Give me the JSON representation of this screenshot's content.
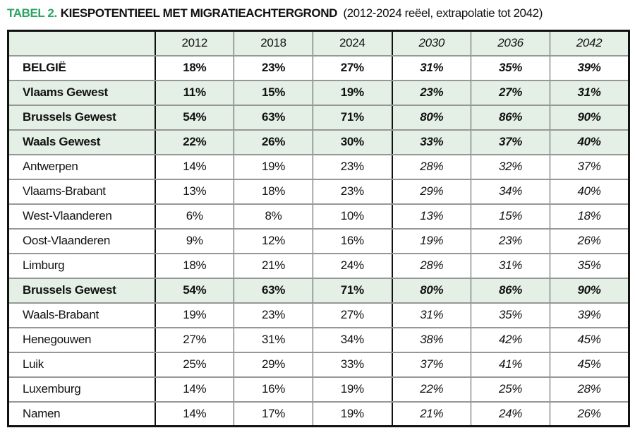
{
  "title": {
    "label": "TABEL 2.",
    "heading": "KIESPOTENTIEEL MET MIGRATIEACHTERGROND",
    "subtitle": "(2012-2024 reëel, extrapolatie tot 2042)"
  },
  "colors": {
    "accent_green": "#2BA563",
    "row_green": "#e4f0e6",
    "border_dark": "#111111",
    "border_gray": "#979797"
  },
  "table": {
    "columns": [
      "",
      "2012",
      "2018",
      "2024",
      "2030",
      "2036",
      "2042"
    ],
    "real_columns": [
      "2012",
      "2018",
      "2024"
    ],
    "extrapolated_columns": [
      "2030",
      "2036",
      "2042"
    ],
    "rows": [
      {
        "label": "BELGIË",
        "values": [
          "18%",
          "23%",
          "27%",
          "31%",
          "35%",
          "39%"
        ],
        "emphasis": "bold",
        "highlight": false
      },
      {
        "label": "Vlaams Gewest",
        "values": [
          "11%",
          "15%",
          "19%",
          "23%",
          "27%",
          "31%"
        ],
        "emphasis": "bold",
        "highlight": true
      },
      {
        "label": "Brussels Gewest",
        "values": [
          "54%",
          "63%",
          "71%",
          "80%",
          "86%",
          "90%"
        ],
        "emphasis": "bold",
        "highlight": true
      },
      {
        "label": "Waals Gewest",
        "values": [
          "22%",
          "26%",
          "30%",
          "33%",
          "37%",
          "40%"
        ],
        "emphasis": "bold",
        "highlight": true
      },
      {
        "label": "Antwerpen",
        "values": [
          "14%",
          "19%",
          "23%",
          "28%",
          "32%",
          "37%"
        ],
        "emphasis": "normal",
        "highlight": false
      },
      {
        "label": "Vlaams-Brabant",
        "values": [
          "13%",
          "18%",
          "23%",
          "29%",
          "34%",
          "40%"
        ],
        "emphasis": "normal",
        "highlight": false
      },
      {
        "label": "West-Vlaanderen",
        "values": [
          "6%",
          "8%",
          "10%",
          "13%",
          "15%",
          "18%"
        ],
        "emphasis": "normal",
        "highlight": false
      },
      {
        "label": "Oost-Vlaanderen",
        "values": [
          "9%",
          "12%",
          "16%",
          "19%",
          "23%",
          "26%"
        ],
        "emphasis": "normal",
        "highlight": false
      },
      {
        "label": "Limburg",
        "values": [
          "18%",
          "21%",
          "24%",
          "28%",
          "31%",
          "35%"
        ],
        "emphasis": "normal",
        "highlight": false
      },
      {
        "label": "Brussels Gewest",
        "values": [
          "54%",
          "63%",
          "71%",
          "80%",
          "86%",
          "90%"
        ],
        "emphasis": "bold",
        "highlight": true
      },
      {
        "label": "Waals-Brabant",
        "values": [
          "19%",
          "23%",
          "27%",
          "31%",
          "35%",
          "39%"
        ],
        "emphasis": "normal",
        "highlight": false
      },
      {
        "label": "Henegouwen",
        "values": [
          "27%",
          "31%",
          "34%",
          "38%",
          "42%",
          "45%"
        ],
        "emphasis": "normal",
        "highlight": false
      },
      {
        "label": "Luik",
        "values": [
          "25%",
          "29%",
          "33%",
          "37%",
          "41%",
          "45%"
        ],
        "emphasis": "normal",
        "highlight": false
      },
      {
        "label": "Luxemburg",
        "values": [
          "14%",
          "16%",
          "19%",
          "22%",
          "25%",
          "28%"
        ],
        "emphasis": "normal",
        "highlight": false
      },
      {
        "label": "Namen",
        "values": [
          "14%",
          "17%",
          "19%",
          "21%",
          "24%",
          "26%"
        ],
        "emphasis": "normal",
        "highlight": false
      }
    ]
  }
}
